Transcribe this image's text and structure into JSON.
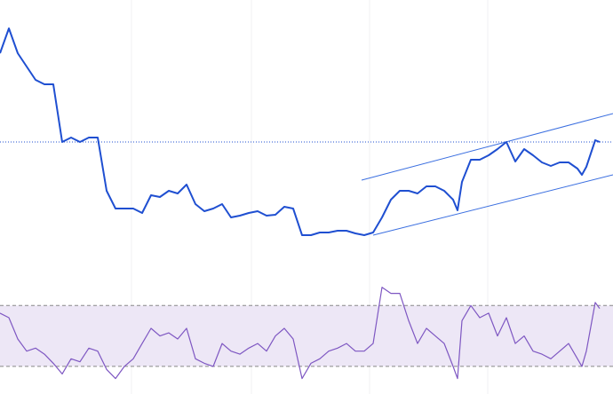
{
  "chart_data": [
    {
      "type": "line",
      "x": [
        0,
        10,
        20,
        30,
        40,
        50,
        60,
        70,
        80,
        90,
        100,
        110,
        120,
        130,
        140,
        150,
        160,
        170,
        180,
        190,
        200,
        210,
        220,
        230,
        240,
        250,
        260,
        270,
        280,
        290,
        300,
        310,
        320,
        330,
        340,
        350,
        360,
        370,
        380,
        390,
        400,
        410,
        420,
        430,
        440,
        450,
        460,
        470,
        480,
        490,
        500,
        510,
        515,
        520,
        530,
        540,
        550,
        560,
        570,
        580,
        590,
        600,
        610,
        620,
        630,
        640,
        650,
        655,
        660,
        670,
        675
      ],
      "series": [
        {
          "color": "#1f4fd1",
          "values": [
            230,
            258,
            230,
            215,
            200,
            195,
            195,
            130,
            135,
            130,
            135,
            135,
            75,
            55,
            55,
            55,
            50,
            70,
            68,
            75,
            72,
            82,
            60,
            52,
            55,
            60,
            45,
            47,
            50,
            52,
            47,
            48,
            57,
            55,
            25,
            25,
            28,
            28,
            30,
            30,
            27,
            25,
            28,
            45,
            65,
            75,
            75,
            72,
            80,
            80,
            75,
            65,
            53,
            85,
            110,
            110,
            115,
            122,
            130,
            108,
            122,
            115,
            107,
            103,
            107,
            107,
            100,
            93,
            102,
            132,
            130
          ]
        }
      ],
      "xlim": [
        0,
        690
      ],
      "ylim": [
        0,
        290
      ],
      "reference_line": 130,
      "channel": {
        "color": "#3b6fe0",
        "upper": {
          "x": [
            407,
            690
          ],
          "y": [
            87,
            162
          ]
        },
        "lower": {
          "x": [
            420,
            690
          ],
          "y": [
            25,
            93
          ]
        }
      }
    },
    {
      "type": "line",
      "x": [
        0,
        10,
        20,
        30,
        40,
        50,
        60,
        70,
        80,
        90,
        100,
        110,
        120,
        130,
        140,
        150,
        160,
        170,
        180,
        190,
        200,
        210,
        220,
        230,
        240,
        250,
        260,
        270,
        280,
        290,
        300,
        310,
        320,
        330,
        340,
        350,
        360,
        370,
        380,
        390,
        400,
        410,
        420,
        430,
        440,
        450,
        460,
        470,
        480,
        490,
        500,
        510,
        515,
        520,
        530,
        540,
        550,
        560,
        570,
        580,
        590,
        600,
        610,
        620,
        630,
        640,
        650,
        655,
        660,
        670,
        675
      ],
      "series": [
        {
          "color": "#7e57c2",
          "values": [
            65,
            62,
            48,
            40,
            42,
            38,
            32,
            25,
            35,
            33,
            42,
            40,
            28,
            22,
            30,
            35,
            45,
            55,
            50,
            52,
            48,
            55,
            35,
            32,
            30,
            45,
            40,
            38,
            42,
            45,
            40,
            50,
            55,
            48,
            22,
            32,
            35,
            40,
            42,
            45,
            40,
            40,
            45,
            82,
            78,
            78,
            60,
            45,
            55,
            50,
            45,
            30,
            22,
            60,
            70,
            62,
            65,
            50,
            62,
            45,
            50,
            40,
            38,
            35,
            40,
            45,
            35,
            30,
            40,
            72,
            68
          ]
        }
      ],
      "xlim": [
        0,
        690
      ],
      "ylim": [
        20,
        90
      ],
      "band": [
        30,
        70
      ],
      "band_color": "#ede7f6"
    }
  ]
}
